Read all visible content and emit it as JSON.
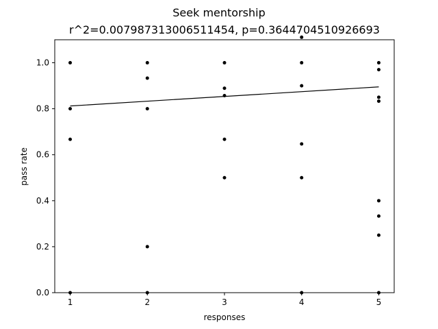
{
  "chart_data": {
    "type": "scatter",
    "title": "Seek mentorship",
    "subtitle": "r^2=0.007987313006511454, p=0.3644704510926693",
    "xlabel": "responses",
    "ylabel": "pass rate",
    "xlim": [
      0.8,
      5.2
    ],
    "ylim": [
      0.0,
      1.1
    ],
    "x_ticks": [
      "1",
      "2",
      "3",
      "4",
      "5"
    ],
    "y_ticks": [
      "0.0",
      "0.2",
      "0.4",
      "0.6",
      "0.8",
      "1.0"
    ],
    "grid": false,
    "points": [
      {
        "x": 1,
        "y": 1.0
      },
      {
        "x": 1,
        "y": 0.8
      },
      {
        "x": 1,
        "y": 0.667
      },
      {
        "x": 1,
        "y": 0.0
      },
      {
        "x": 2,
        "y": 1.0
      },
      {
        "x": 2,
        "y": 0.933
      },
      {
        "x": 2,
        "y": 0.8
      },
      {
        "x": 2,
        "y": 0.2
      },
      {
        "x": 2,
        "y": 0.0
      },
      {
        "x": 3,
        "y": 1.0
      },
      {
        "x": 3,
        "y": 0.889
      },
      {
        "x": 3,
        "y": 0.857
      },
      {
        "x": 3,
        "y": 0.667
      },
      {
        "x": 3,
        "y": 0.5
      },
      {
        "x": 4,
        "y": 1.111
      },
      {
        "x": 4,
        "y": 1.0
      },
      {
        "x": 4,
        "y": 0.9
      },
      {
        "x": 4,
        "y": 0.647
      },
      {
        "x": 4,
        "y": 0.5
      },
      {
        "x": 4,
        "y": 0.0
      },
      {
        "x": 5,
        "y": 1.0
      },
      {
        "x": 5,
        "y": 0.97
      },
      {
        "x": 5,
        "y": 0.85
      },
      {
        "x": 5,
        "y": 0.833
      },
      {
        "x": 5,
        "y": 0.4
      },
      {
        "x": 5,
        "y": 0.333
      },
      {
        "x": 5,
        "y": 0.25
      },
      {
        "x": 5,
        "y": 0.0
      }
    ],
    "fit_line": {
      "x": [
        1,
        5
      ],
      "y": [
        0.812,
        0.895
      ]
    },
    "marker_color": "#000000",
    "line_color": "#000000"
  }
}
